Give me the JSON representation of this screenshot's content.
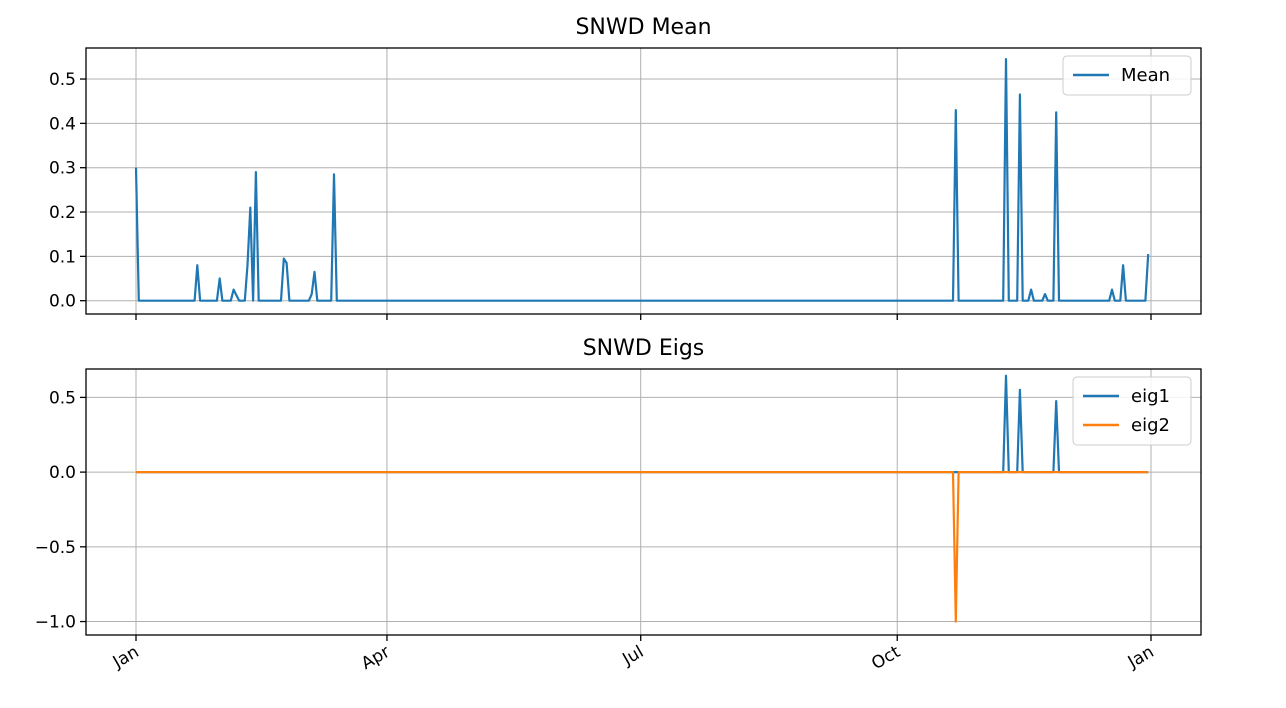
{
  "chart_data": [
    {
      "type": "line",
      "title": "SNWD Mean",
      "xlabel": "",
      "ylabel": "",
      "x_ticks": [
        "Jan",
        "Apr",
        "Jul",
        "Oct",
        "Jan"
      ],
      "x_range_days": [
        0,
        364
      ],
      "ylim": [
        -0.03,
        0.57
      ],
      "y_ticks": [
        0.0,
        0.1,
        0.2,
        0.3,
        0.4,
        0.5
      ],
      "y_tick_labels": [
        "0.0",
        "0.1",
        "0.2",
        "0.3",
        "0.4",
        "0.5"
      ],
      "grid": true,
      "legend": "top-right",
      "series": [
        {
          "name": "Mean",
          "color": "#1f77b4",
          "points": [
            [
              0,
              0.3
            ],
            [
              1,
              0.0
            ],
            [
              21,
              0.0
            ],
            [
              22,
              0.08
            ],
            [
              23,
              0.0
            ],
            [
              29,
              0.0
            ],
            [
              30,
              0.05
            ],
            [
              31,
              0.0
            ],
            [
              34,
              0.0
            ],
            [
              35,
              0.025
            ],
            [
              37,
              0.0
            ],
            [
              39,
              0.0
            ],
            [
              40,
              0.08
            ],
            [
              41,
              0.21
            ],
            [
              42,
              0.0
            ],
            [
              43,
              0.29
            ],
            [
              44,
              0.0
            ],
            [
              52,
              0.0
            ],
            [
              53,
              0.095
            ],
            [
              54,
              0.085
            ],
            [
              55,
              0.0
            ],
            [
              62,
              0.0
            ],
            [
              63,
              0.015
            ],
            [
              64,
              0.065
            ],
            [
              65,
              0.0
            ],
            [
              70,
              0.0
            ],
            [
              71,
              0.285
            ],
            [
              72,
              0.0
            ],
            [
              293,
              0.0
            ],
            [
              294,
              0.43
            ],
            [
              295,
              0.0
            ],
            [
              311,
              0.0
            ],
            [
              312,
              0.545
            ],
            [
              313,
              0.0
            ],
            [
              316,
              0.0
            ],
            [
              317,
              0.465
            ],
            [
              318,
              0.0
            ],
            [
              320,
              0.0
            ],
            [
              321,
              0.025
            ],
            [
              322,
              0.0
            ],
            [
              325,
              0.0
            ],
            [
              326,
              0.015
            ],
            [
              327,
              0.0
            ],
            [
              329,
              0.0
            ],
            [
              330,
              0.425
            ],
            [
              331,
              0.0
            ],
            [
              349,
              0.0
            ],
            [
              350,
              0.025
            ],
            [
              351,
              0.0
            ],
            [
              353,
              0.0
            ],
            [
              354,
              0.08
            ],
            [
              355,
              0.0
            ],
            [
              362,
              0.0
            ],
            [
              363,
              0.105
            ]
          ]
        }
      ]
    },
    {
      "type": "line",
      "title": "SNWD Eigs",
      "xlabel": "",
      "ylabel": "",
      "x_ticks": [
        "Jan",
        "Apr",
        "Jul",
        "Oct",
        "Jan"
      ],
      "x_range_days": [
        0,
        364
      ],
      "ylim": [
        -1.09,
        0.69
      ],
      "y_ticks": [
        -1.0,
        -0.5,
        0.0,
        0.5
      ],
      "y_tick_labels": [
        "−1.0",
        "−0.5",
        "0.0",
        "0.5"
      ],
      "grid": true,
      "legend": "top-right",
      "series": [
        {
          "name": "eig1",
          "color": "#1f77b4",
          "points": [
            [
              0,
              0.0
            ],
            [
              311,
              0.0
            ],
            [
              312,
              0.645
            ],
            [
              313,
              0.0
            ],
            [
              316,
              0.0
            ],
            [
              317,
              0.55
            ],
            [
              318,
              0.0
            ],
            [
              329,
              0.0
            ],
            [
              330,
              0.475
            ],
            [
              331,
              0.0
            ],
            [
              363,
              0.0
            ]
          ]
        },
        {
          "name": "eig2",
          "color": "#ff7f0e",
          "points": [
            [
              0,
              0.0
            ],
            [
              293,
              0.0
            ],
            [
              294,
              -1.0
            ],
            [
              295,
              0.0
            ],
            [
              363,
              0.0
            ]
          ]
        }
      ]
    }
  ]
}
